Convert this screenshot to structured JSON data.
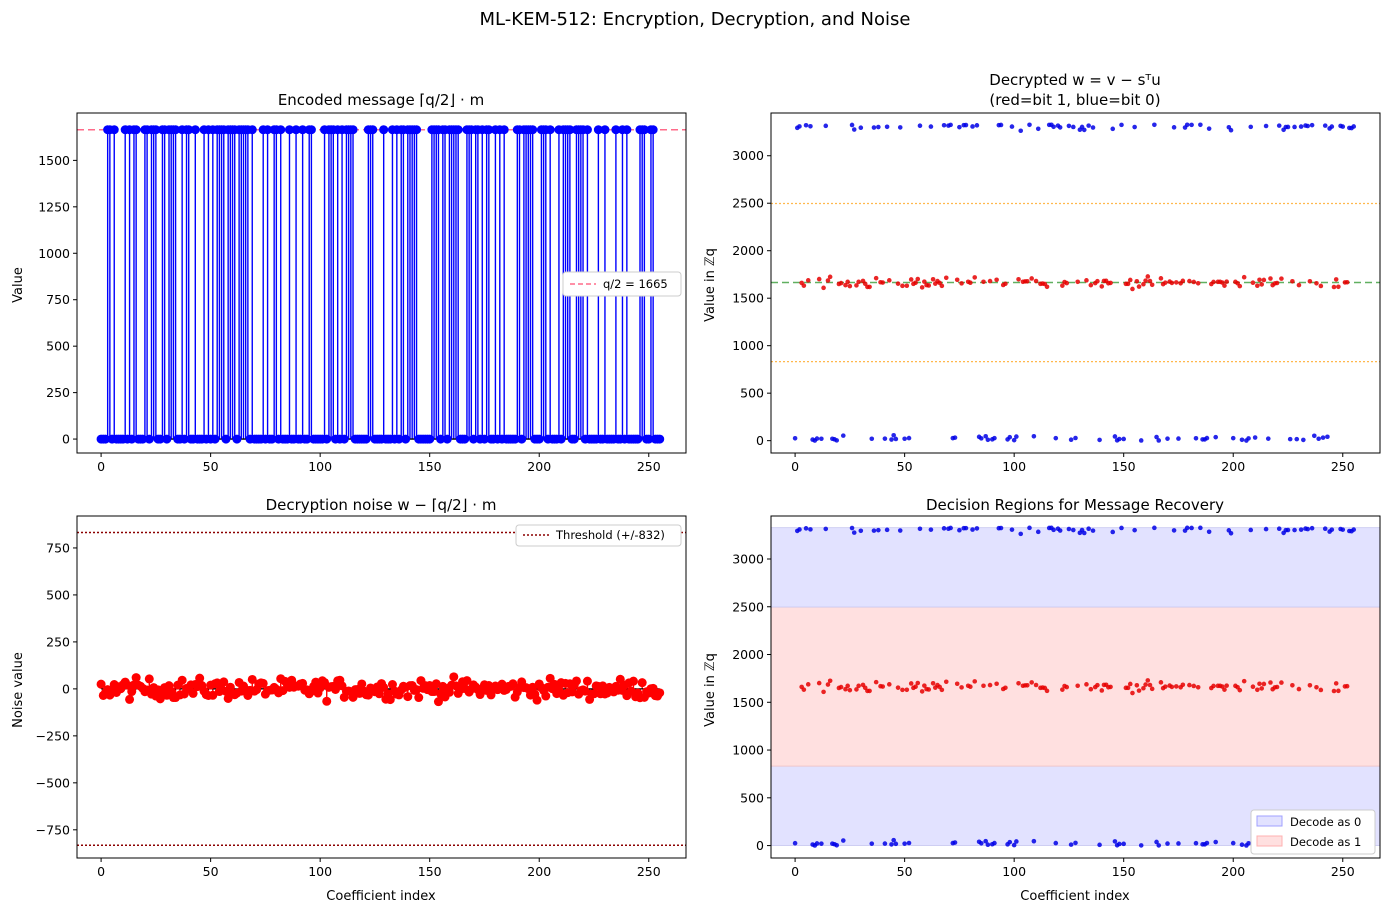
{
  "figure": {
    "suptitle": "ML-KEM-512: Encryption, Decryption, and Noise"
  },
  "colors": {
    "blue": "#0000ff",
    "red": "#ff0000",
    "scatter_blue": "#0000e6",
    "scatter_red": "#e60000",
    "line_pink": "#ff6b8a",
    "line_green": "#60b060",
    "line_orange": "#ffb84d",
    "threshold": "#8b0000",
    "region_blue": "#e2e2ff",
    "region_red": "#ffe0e0"
  },
  "chart_data": [
    {
      "id": "encoded",
      "type": "stem",
      "title": "Encoded message ⌈q/2⌋ · m",
      "xlabel": "",
      "ylabel": "Value",
      "xlim": [
        -11,
        267
      ],
      "ylim": [
        -75,
        1755
      ],
      "xticks": [
        "0",
        "50",
        "100",
        "150",
        "200",
        "250"
      ],
      "yticks": [
        "0",
        "250",
        "500",
        "750",
        "1000",
        "1250",
        "1500"
      ],
      "hline": {
        "y": 1665,
        "label": "q/2 = 1665"
      },
      "x": "0..255",
      "values": "each coefficient is 0 (bit 0) or 1665 (bit 1)"
    },
    {
      "id": "decrypted",
      "type": "scatter",
      "title_line1": "Decrypted w = v − sᵀu",
      "title_line2": "(red=bit 1, blue=bit 0)",
      "xlabel": "",
      "ylabel": "Value in ℤq",
      "xlim": [
        -11,
        267
      ],
      "ylim": [
        -130,
        3450
      ],
      "xticks": [
        "0",
        "50",
        "100",
        "150",
        "200",
        "250"
      ],
      "yticks": [
        "0",
        "500",
        "1000",
        "1500",
        "2000",
        "2500",
        "3000"
      ],
      "hlines": [
        2497,
        1665,
        832
      ],
      "clusters": {
        "bit1_center": 1665,
        "bit0_low_center": 30,
        "bit0_high_center": 3300
      }
    },
    {
      "id": "noise",
      "type": "stem",
      "title": "Decryption noise w − ⌈q/2⌋ · m",
      "xlabel": "Coefficient index",
      "ylabel": "Noise value",
      "xlim": [
        -11,
        267
      ],
      "ylim": [
        -900,
        920
      ],
      "xticks": [
        "0",
        "50",
        "100",
        "150",
        "200",
        "250"
      ],
      "yticks": [
        "−750",
        "−500",
        "−250",
        "0",
        "250",
        "500",
        "750"
      ],
      "threshold": {
        "value": 832,
        "label": "Threshold (+/-832)"
      },
      "noise_range": [
        -130,
        120
      ]
    },
    {
      "id": "regions",
      "type": "scatter",
      "title": "Decision Regions for Message Recovery",
      "xlabel": "Coefficient index",
      "ylabel": "Value in ℤq",
      "xlim": [
        -11,
        267
      ],
      "ylim": [
        -130,
        3450
      ],
      "xticks": [
        "0",
        "50",
        "100",
        "150",
        "200",
        "250"
      ],
      "yticks": [
        "0",
        "500",
        "1000",
        "1500",
        "2000",
        "2500",
        "3000"
      ],
      "regions": [
        {
          "from": 0,
          "to": 832,
          "decode": 0
        },
        {
          "from": 832,
          "to": 2497,
          "decode": 1
        },
        {
          "from": 2497,
          "to": 3328,
          "decode": 0
        }
      ],
      "legend": [
        "Decode as 0",
        "Decode as 1"
      ]
    }
  ]
}
